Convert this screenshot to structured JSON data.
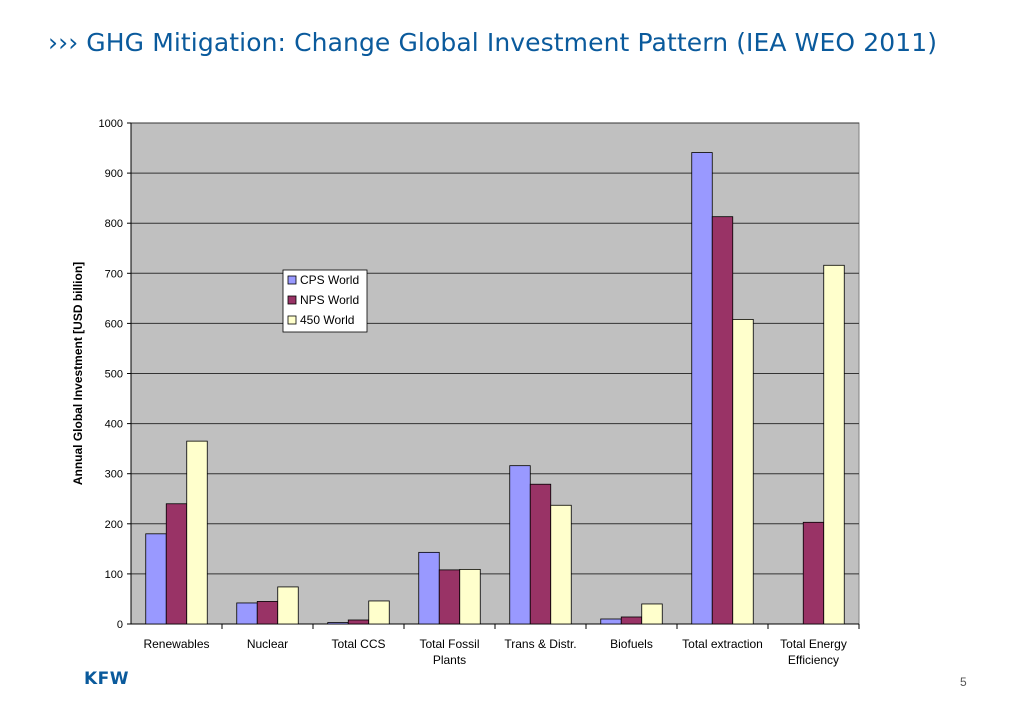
{
  "slide": {
    "title_marker": "›››",
    "title": "GHG Mitigation: Change Global Investment Pattern (IEA WEO 2011)",
    "logo_text": "KFW",
    "page_number": "5"
  },
  "colors": {
    "title": "#0a5a9c",
    "plot_background": "#c0c0c0",
    "CPS World": "#9999ff",
    "NPS World": "#993366",
    "450 World": "#ffffcc"
  },
  "chart_data": {
    "type": "bar",
    "title": "",
    "xlabel": "",
    "ylabel": "Annual Global Investment [USD billion]",
    "ylim": [
      0,
      1000
    ],
    "yticks": [
      0,
      100,
      200,
      300,
      400,
      500,
      600,
      700,
      800,
      900,
      1000
    ],
    "grid": "horizontal",
    "legend_position": "inside-upper-left",
    "categories": [
      [
        "Renewables"
      ],
      [
        "Nuclear"
      ],
      [
        "Total CCS"
      ],
      [
        "Total Fossil",
        "Plants"
      ],
      [
        "Trans & Distr."
      ],
      [
        "Biofuels"
      ],
      [
        "Total extraction"
      ],
      [
        "Total Energy",
        "Efficiency"
      ]
    ],
    "series": [
      {
        "name": "CPS World",
        "color": "#9999ff",
        "values": [
          180,
          42,
          3,
          143,
          316,
          10,
          941,
          0
        ]
      },
      {
        "name": "NPS World",
        "color": "#993366",
        "values": [
          240,
          45,
          8,
          108,
          279,
          14,
          813,
          203
        ]
      },
      {
        "name": "450 World",
        "color": "#ffffcc",
        "values": [
          365,
          74,
          46,
          109,
          237,
          40,
          608,
          716
        ]
      }
    ]
  }
}
